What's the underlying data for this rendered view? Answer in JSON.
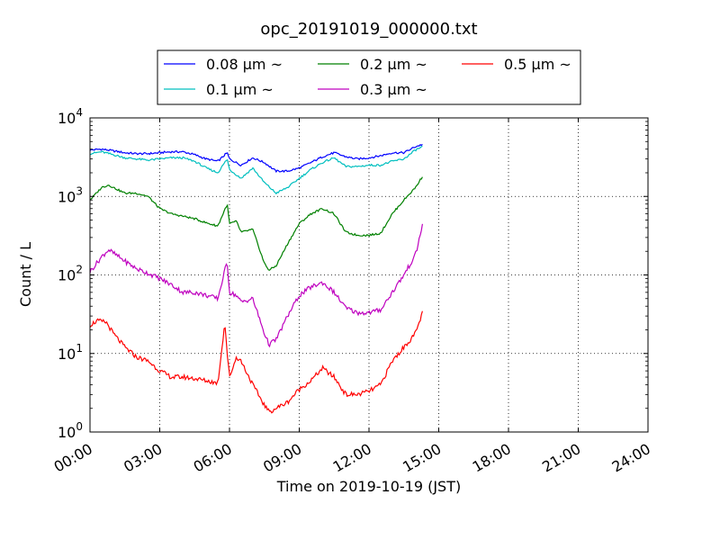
{
  "chart_data": {
    "type": "line",
    "title": "opc_20191019_000000.txt",
    "xlabel": "Time on 2019-10-19 (JST)",
    "ylabel": "Count / L",
    "xlim_hours": [
      0,
      24
    ],
    "x_ticks": [
      {
        "h": 0,
        "label": "00:00"
      },
      {
        "h": 3,
        "label": "03:00"
      },
      {
        "h": 6,
        "label": "06:00"
      },
      {
        "h": 9,
        "label": "09:00"
      },
      {
        "h": 12,
        "label": "12:00"
      },
      {
        "h": 15,
        "label": "15:00"
      },
      {
        "h": 18,
        "label": "18:00"
      },
      {
        "h": 21,
        "label": "21:00"
      },
      {
        "h": 24,
        "label": "24:00"
      }
    ],
    "y_scale": "log",
    "ylim": [
      1,
      10000
    ],
    "y_ticks": [
      {
        "v": 1,
        "base": "10",
        "exp": "0"
      },
      {
        "v": 10,
        "base": "10",
        "exp": "1"
      },
      {
        "v": 100,
        "base": "10",
        "exp": "2"
      },
      {
        "v": 1000,
        "base": "10",
        "exp": "3"
      },
      {
        "v": 10000,
        "base": "10",
        "exp": "4"
      }
    ],
    "grid": true,
    "legend_position": "top-center (above plot)",
    "x_unit": "hours since 00:00",
    "series": [
      {
        "name": "0.08 μm ~",
        "color": "#0000ff",
        "x": [
          0,
          0.5,
          1,
          1.5,
          2,
          2.5,
          3,
          3.5,
          4,
          4.5,
          5,
          5.5,
          5.9,
          6,
          6.5,
          7,
          7.5,
          8,
          8.5,
          9,
          9.5,
          10,
          10.5,
          11,
          11.5,
          12,
          12.5,
          13,
          13.5,
          14,
          14.3
        ],
        "y": [
          3900,
          4000,
          3800,
          3600,
          3500,
          3500,
          3600,
          3700,
          3700,
          3400,
          3000,
          2800,
          3600,
          3000,
          2500,
          3100,
          2700,
          2100,
          2100,
          2300,
          2700,
          3200,
          3600,
          3200,
          3000,
          3100,
          3300,
          3600,
          3600,
          4300,
          4600
        ]
      },
      {
        "name": "0.1 μm ~",
        "color": "#00bfbf",
        "x": [
          0,
          0.5,
          1,
          1.5,
          2,
          2.5,
          3,
          3.5,
          4,
          4.5,
          5,
          5.5,
          5.9,
          6,
          6.5,
          7,
          7.5,
          8,
          8.5,
          9,
          9.5,
          10,
          10.5,
          11,
          11.5,
          12,
          12.5,
          13,
          13.5,
          14,
          14.3
        ],
        "y": [
          3500,
          3700,
          3400,
          3100,
          3000,
          2900,
          3000,
          3100,
          3100,
          2800,
          2300,
          2000,
          3000,
          2200,
          1700,
          2300,
          1500,
          1100,
          1300,
          1700,
          2200,
          2700,
          3100,
          2400,
          2400,
          2500,
          2500,
          2800,
          3000,
          3900,
          4300
        ]
      },
      {
        "name": "0.2 μm ~",
        "color": "#008000",
        "x": [
          0,
          0.5,
          0.8,
          1,
          1.5,
          2,
          2.5,
          3,
          3.5,
          4,
          4.5,
          5,
          5.5,
          5.9,
          6,
          6.3,
          6.5,
          7,
          7.5,
          7.7,
          8,
          8.5,
          9,
          9.5,
          10,
          10.5,
          11,
          11.5,
          12,
          12.5,
          13,
          13.5,
          14,
          14.3
        ],
        "y": [
          900,
          1300,
          1400,
          1300,
          1100,
          1100,
          1000,
          700,
          600,
          560,
          520,
          460,
          420,
          800,
          450,
          480,
          350,
          380,
          140,
          115,
          130,
          250,
          450,
          600,
          700,
          600,
          350,
          320,
          320,
          340,
          600,
          900,
          1300,
          1800
        ]
      },
      {
        "name": "0.3 μm ~",
        "color": "#bf00bf",
        "x": [
          0,
          0.5,
          0.8,
          1,
          1.5,
          2,
          2.5,
          3,
          3.5,
          4,
          4.5,
          5,
          5.5,
          5.9,
          6,
          6.3,
          6.5,
          7,
          7.5,
          7.7,
          8,
          8.5,
          9,
          9.5,
          10,
          10.5,
          11,
          11.5,
          12,
          12.5,
          13,
          13.5,
          14,
          14.3
        ],
        "y": [
          110,
          170,
          210,
          190,
          150,
          120,
          105,
          90,
          75,
          60,
          60,
          55,
          50,
          150,
          60,
          55,
          45,
          50,
          18,
          13,
          15,
          30,
          55,
          70,
          80,
          60,
          38,
          33,
          33,
          36,
          60,
          100,
          180,
          430
        ]
      },
      {
        "name": "0.5 μm ~",
        "color": "#ff0000",
        "x": [
          0,
          0.3,
          0.7,
          1,
          1.5,
          2,
          2.5,
          3,
          3.5,
          4,
          4.5,
          5,
          5.5,
          5.8,
          5.9,
          6,
          6.3,
          6.5,
          7,
          7.5,
          7.7,
          8,
          8.5,
          9,
          9.5,
          10,
          10.5,
          11,
          11.5,
          12,
          12.5,
          13,
          13.5,
          14,
          14.3
        ],
        "y": [
          23,
          26,
          25,
          18,
          12,
          9,
          8,
          6,
          5,
          5,
          4.8,
          4.5,
          4.2,
          25,
          10,
          5,
          9,
          8,
          4,
          2.2,
          1.8,
          2,
          2.4,
          3.5,
          4.5,
          6.5,
          5,
          3,
          3,
          3.3,
          4,
          8,
          12,
          18,
          33
        ]
      }
    ]
  }
}
